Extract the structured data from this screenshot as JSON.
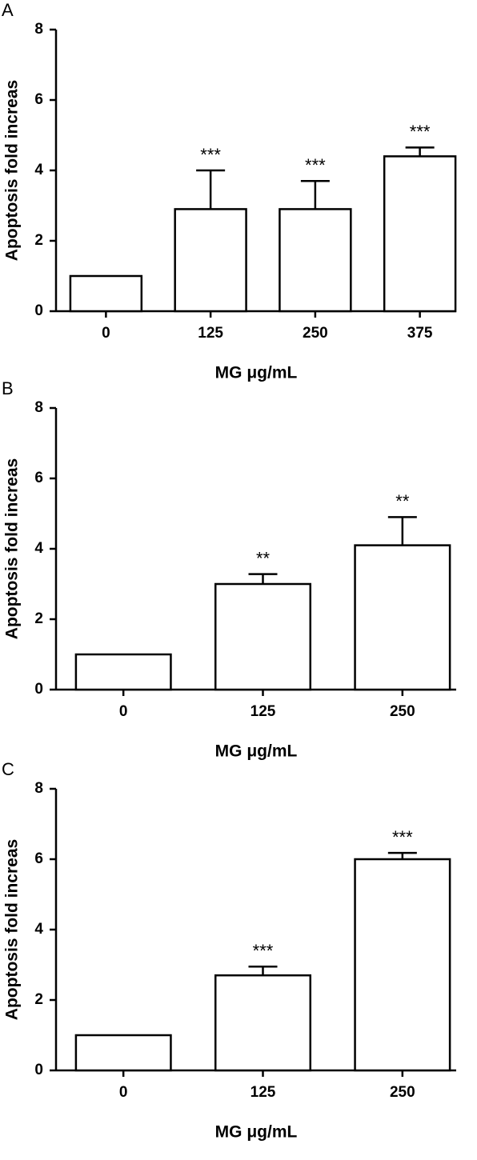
{
  "chart_data": [
    {
      "type": "bar",
      "panel": "A",
      "ylabel": "Apoptosis fold increas",
      "xlabel": "MG μg/mL",
      "categories": [
        "0",
        "125",
        "250",
        "375"
      ],
      "values": [
        1.0,
        2.9,
        2.9,
        4.4
      ],
      "errors": [
        0,
        1.1,
        0.8,
        0.25
      ],
      "annotations": [
        null,
        "***",
        "***",
        "***"
      ],
      "color": "#ffffff",
      "ylim": [
        0,
        8
      ],
      "yticks": [
        0,
        2,
        4,
        6,
        8
      ]
    },
    {
      "type": "bar",
      "panel": "B",
      "ylabel": "Apoptosis fold increas",
      "xlabel": "MG μg/mL",
      "categories": [
        "0",
        "125",
        "250"
      ],
      "values": [
        1.0,
        3.0,
        4.1
      ],
      "errors": [
        0,
        0.28,
        0.8
      ],
      "annotations": [
        null,
        "**",
        "**"
      ],
      "color": "#ffffff",
      "ylim": [
        0,
        8
      ],
      "yticks": [
        0,
        2,
        4,
        6,
        8
      ]
    },
    {
      "type": "bar",
      "panel": "C",
      "ylabel": "Apoptosis fold increas",
      "xlabel": "MG μg/mL",
      "categories": [
        "0",
        "125",
        "250"
      ],
      "values": [
        1.0,
        2.7,
        6.0
      ],
      "errors": [
        0,
        0.25,
        0.18
      ],
      "annotations": [
        null,
        "***",
        "***"
      ],
      "color": "#ffffff",
      "ylim": [
        0,
        8
      ],
      "yticks": [
        0,
        2,
        4,
        6,
        8
      ]
    }
  ]
}
